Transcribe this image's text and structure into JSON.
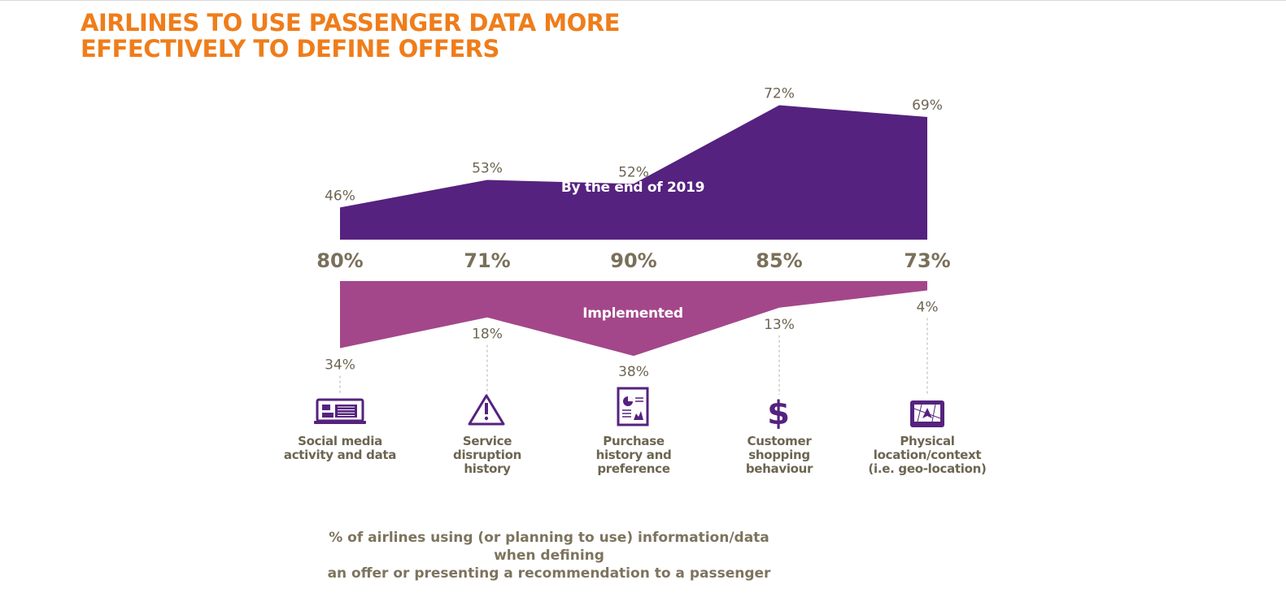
{
  "title": {
    "line1": "AIRLINES TO USE PASSENGER DATA MORE",
    "line2": "EFFECTIVELY TO DEFINE OFFERS"
  },
  "footnote": {
    "line1": "% of airlines using (or planning to use) information/data when defining",
    "line2": "an offer or presenting a recommendation to a passenger"
  },
  "colors": {
    "title": "#ef7d1a",
    "by_end_2019": "#55227f",
    "implemented": "#a3478a",
    "icon": "#55227f",
    "label_text": "#6d6552",
    "total_text": "#7a705a"
  },
  "chart_data": {
    "type": "area",
    "categories": [
      {
        "lines": [
          "Social media",
          "activity and data"
        ],
        "icon": "laptop-icon"
      },
      {
        "lines": [
          "Service",
          "disruption",
          "history"
        ],
        "icon": "warning-icon"
      },
      {
        "lines": [
          "Purchase",
          "history and",
          "preference"
        ],
        "icon": "document-chart-icon"
      },
      {
        "lines": [
          "Customer",
          "shopping",
          "behaviour"
        ],
        "icon": "dollar-icon"
      },
      {
        "lines": [
          "Physical",
          "location/context",
          "(i.e. geo-location)"
        ],
        "icon": "map-tablet-icon"
      }
    ],
    "series": [
      {
        "name": "By the end of 2019",
        "values": [
          46,
          53,
          52,
          72,
          69
        ],
        "labels": [
          "46%",
          "53%",
          "52%",
          "72%",
          "69%"
        ]
      },
      {
        "name": "Implemented",
        "values": [
          34,
          18,
          38,
          13,
          4
        ],
        "labels": [
          "34%",
          "18%",
          "38%",
          "13%",
          "4%"
        ]
      }
    ],
    "totals": {
      "values": [
        80,
        71,
        90,
        85,
        73
      ],
      "labels": [
        "80%",
        "71%",
        "90%",
        "85%",
        "73%"
      ]
    }
  }
}
